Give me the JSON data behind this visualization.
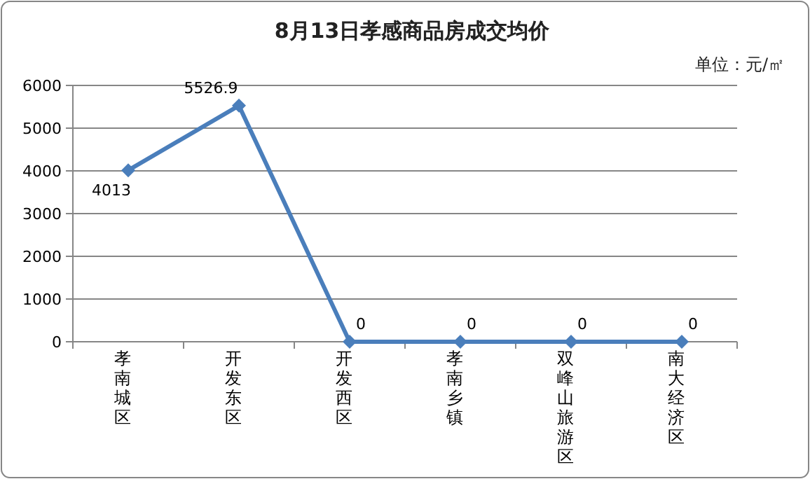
{
  "chart_data": {
    "type": "line",
    "title": "8月13日孝感商品房成交均价",
    "annotations": [
      "单位：元/㎡"
    ],
    "categories": [
      "孝南城区",
      "开发东区",
      "开发西区",
      "孝南乡镇",
      "双峰山旅游区",
      "南大经济区"
    ],
    "values": [
      4013,
      5526.9,
      0,
      0,
      0,
      0
    ],
    "color": "#4a7ebb",
    "ylim": [
      0,
      6000
    ],
    "yticks": [
      0,
      1000,
      2000,
      3000,
      4000,
      5000,
      6000
    ],
    "grid": "y",
    "marker": "diamond",
    "data_labels": true,
    "line_style": "solid"
  }
}
